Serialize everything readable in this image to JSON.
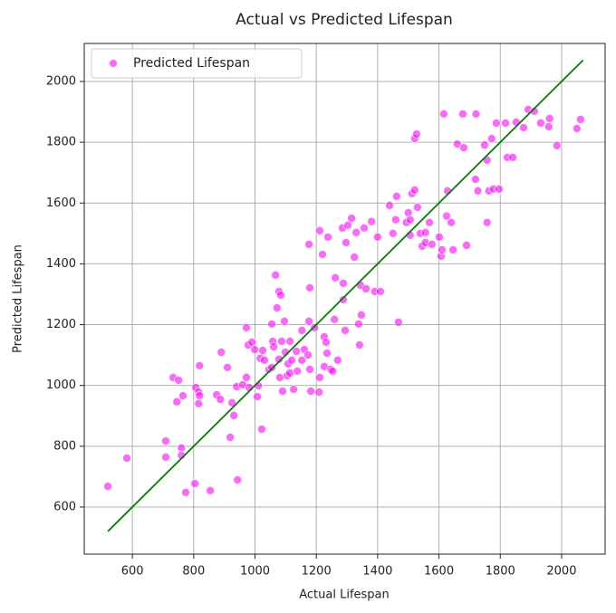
{
  "chart_data": {
    "type": "scatter",
    "title": "Actual vs Predicted Lifespan",
    "x_label": "Actual Lifespan",
    "y_label": "Predicted Lifespan",
    "xlim": [
      443,
      2142
    ],
    "ylim": [
      445,
      2125
    ],
    "xticks": [
      600,
      800,
      1000,
      1200,
      1400,
      1600,
      1800,
      2000
    ],
    "yticks": [
      600,
      800,
      1000,
      1200,
      1400,
      1600,
      1800,
      2000
    ],
    "grid": true,
    "legend": "upper left",
    "x": [
      520,
      582,
      709,
      709,
      733,
      751,
      745,
      765,
      760,
      760,
      774,
      804,
      807,
      816,
      816,
      819,
      819,
      854,
      875,
      887,
      890,
      910,
      919,
      925,
      931,
      943,
      940,
      960,
      972,
      972,
      978,
      981,
      990,
      999,
      1008,
      1011,
      1017,
      1025,
      1022,
      1031,
      1046,
      1055,
      1055,
      1058,
      1061,
      1067,
      1072,
      1078,
      1081,
      1084,
      1078,
      1087,
      1090,
      1099,
      1105,
      1108,
      1114,
      1096,
      1114,
      1120,
      1126,
      1135,
      1138,
      1153,
      1153,
      1161,
      1173,
      1176,
      1176,
      1179,
      1179,
      1182,
      1194,
      1209,
      1211,
      1211,
      1220,
      1226,
      1226,
      1232,
      1235,
      1238,
      1247,
      1253,
      1259,
      1262,
      1270,
      1285,
      1288,
      1288,
      1294,
      1297,
      1303,
      1315,
      1324,
      1330,
      1338,
      1341,
      1344,
      1347,
      1356,
      1362,
      1380,
      1391,
      1400,
      1409,
      1439,
      1450,
      1459,
      1462,
      1468,
      1494,
      1500,
      1506,
      1506,
      1512,
      1521,
      1521,
      1527,
      1530,
      1539,
      1545,
      1556,
      1556,
      1569,
      1577,
      1601,
      1607,
      1610,
      1616,
      1625,
      1628,
      1640,
      1646,
      1660,
      1678,
      1681,
      1690,
      1719,
      1721,
      1727,
      1749,
      1757,
      1757,
      1763,
      1772,
      1778,
      1787,
      1796,
      1817,
      1823,
      1841,
      1852,
      1876,
      1891,
      1911,
      1932,
      1958,
      1961,
      1985,
      2050,
      2062
    ],
    "series": [
      {
        "name": "Predicted Lifespan",
        "color": "#ff00ff",
        "values": [
          668,
          761,
          817,
          764,
          1026,
          1017,
          946,
          966,
          794,
          770,
          648,
          677,
          993,
          978,
          940,
          966,
          1065,
          654,
          969,
          954,
          1109,
          1059,
          829,
          943,
          901,
          689,
          996,
          1002,
          1190,
          1026,
          1133,
          993,
          1142,
          1118,
          963,
          999,
          1089,
          1115,
          856,
          1083,
          1053,
          1202,
          1059,
          1145,
          1127,
          1363,
          1255,
          1309,
          1026,
          1297,
          1086,
          1145,
          981,
          1109,
          1032,
          1071,
          1145,
          1211,
          1041,
          1083,
          987,
          1112,
          1047,
          1181,
          1083,
          1118,
          1100,
          1211,
          1464,
          1321,
          1053,
          981,
          1190,
          978,
          1026,
          1509,
          1431,
          1062,
          1160,
          1142,
          1106,
          1488,
          1053,
          1047,
          1217,
          1354,
          1083,
          1518,
          1282,
          1336,
          1181,
          1470,
          1527,
          1550,
          1422,
          1503,
          1202,
          1133,
          1330,
          1232,
          1518,
          1318,
          1539,
          1309,
          1488,
          1309,
          1592,
          1500,
          1545,
          1622,
          1208,
          1536,
          1568,
          1545,
          1494,
          1631,
          1812,
          1643,
          1827,
          1586,
          1500,
          1458,
          1503,
          1470,
          1536,
          1464,
          1488,
          1425,
          1446,
          1893,
          1557,
          1640,
          1536,
          1446,
          1794,
          1893,
          1782,
          1461,
          1678,
          1893,
          1640,
          1791,
          1536,
          1741,
          1640,
          1812,
          1646,
          1863,
          1646,
          1863,
          1750,
          1750,
          1866,
          1848,
          1908,
          1902,
          1863,
          1851,
          1878,
          1789,
          1845,
          1875
        ]
      }
    ],
    "reference_line": {
      "color": "green",
      "x": [
        520,
        2070
      ],
      "y": [
        520,
        2070
      ]
    }
  }
}
